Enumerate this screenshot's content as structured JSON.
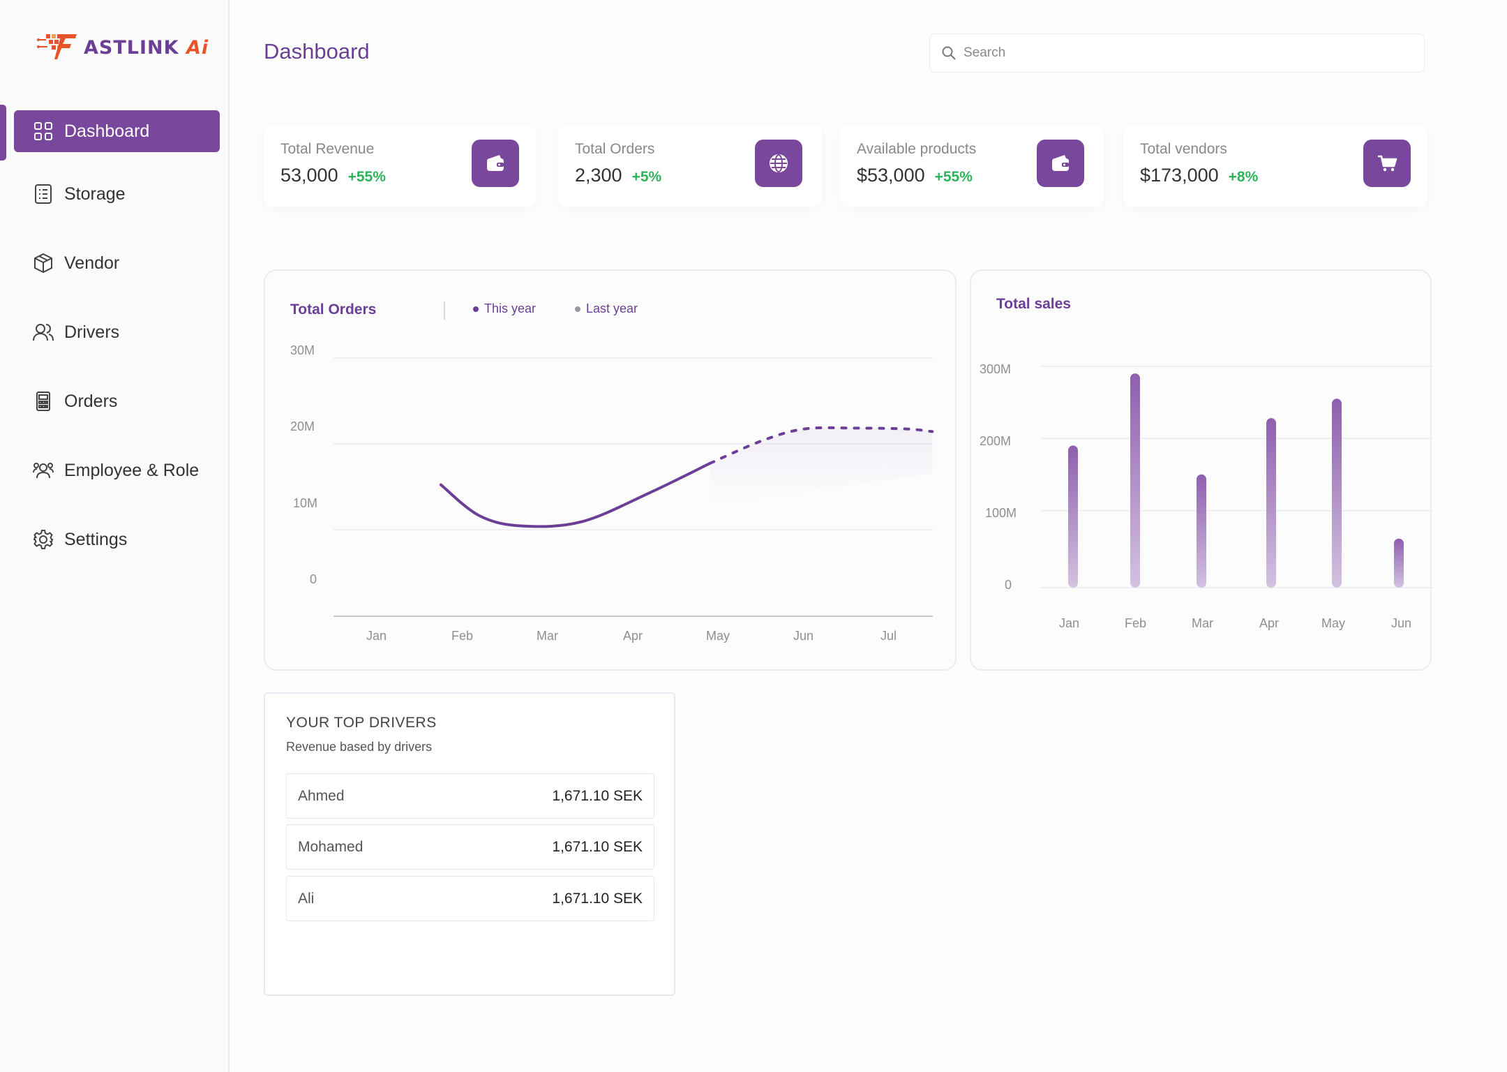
{
  "brand": {
    "name": "ASTLINK",
    "suffix": "Ai"
  },
  "sidebar": {
    "items": [
      {
        "label": "Dashboard",
        "icon": "grid-icon",
        "active": true
      },
      {
        "label": "Storage",
        "icon": "list-icon"
      },
      {
        "label": "Vendor",
        "icon": "box-icon"
      },
      {
        "label": "Drivers",
        "icon": "users-icon"
      },
      {
        "label": "Orders",
        "icon": "calculator-icon"
      },
      {
        "label": "Employee & Role",
        "icon": "user-group-icon"
      },
      {
        "label": "Settings",
        "icon": "gear-icon"
      }
    ]
  },
  "header": {
    "title": "Dashboard",
    "search_placeholder": "Search"
  },
  "stats": [
    {
      "label": "Total Revenue",
      "value": "53,000",
      "change": "+55%",
      "icon": "wallet-icon"
    },
    {
      "label": "Total Orders",
      "value": "2,300",
      "change": "+5%",
      "icon": "globe-icon"
    },
    {
      "label": "Available products",
      "value": "$53,000",
      "change": "+55%",
      "icon": "wallet-icon"
    },
    {
      "label": "Total vendors",
      "value": "$173,000",
      "change": "+8%",
      "icon": "cart-icon"
    }
  ],
  "colors": {
    "accent": "#79479b",
    "positive": "#2db45b",
    "legend_last_year": "#9a9aa2"
  },
  "chart_data": [
    {
      "type": "line",
      "title": "Total Orders",
      "legend": [
        "This year",
        "Last year"
      ],
      "categories": [
        "Jan",
        "Feb",
        "Mar",
        "Apr",
        "May",
        "Jun",
        "Jul"
      ],
      "yticks": [
        "30M",
        "20M",
        "10M",
        "0"
      ],
      "ylim": [
        0,
        30
      ],
      "series": [
        {
          "name": "This year",
          "x": [
            0.75,
            1.2,
            1.7,
            2.4,
            3.2,
            3.9
          ],
          "values": [
            15.4,
            11.8,
            10.6,
            11.1,
            14.5,
            17.9
          ],
          "style": "solid"
        },
        {
          "name": "Last year",
          "x": [
            3.9,
            4.5,
            5.0,
            5.6,
            6.2,
            6.5
          ],
          "values": [
            17.9,
            20.5,
            21.9,
            22.0,
            21.9,
            21.6
          ],
          "style": "dashed"
        }
      ],
      "grid": true
    },
    {
      "type": "bar",
      "title": "Total sales",
      "categories": [
        "Jan",
        "Feb",
        "Mar",
        "Apr",
        "May",
        "Jun"
      ],
      "values": [
        197,
        297,
        157,
        235,
        262,
        68
      ],
      "yticks": [
        "300M",
        "200M",
        "100M",
        "0"
      ],
      "ylim": [
        0,
        300
      ],
      "grid": true
    }
  ],
  "drivers": {
    "title": "YOUR TOP DRIVERS",
    "subtitle": "Revenue based by drivers",
    "rows": [
      {
        "name": "Ahmed",
        "amount": "1,671.10 SEK"
      },
      {
        "name": "Mohamed",
        "amount": "1,671.10 SEK"
      },
      {
        "name": "Ali",
        "amount": "1,671.10 SEK"
      }
    ]
  }
}
